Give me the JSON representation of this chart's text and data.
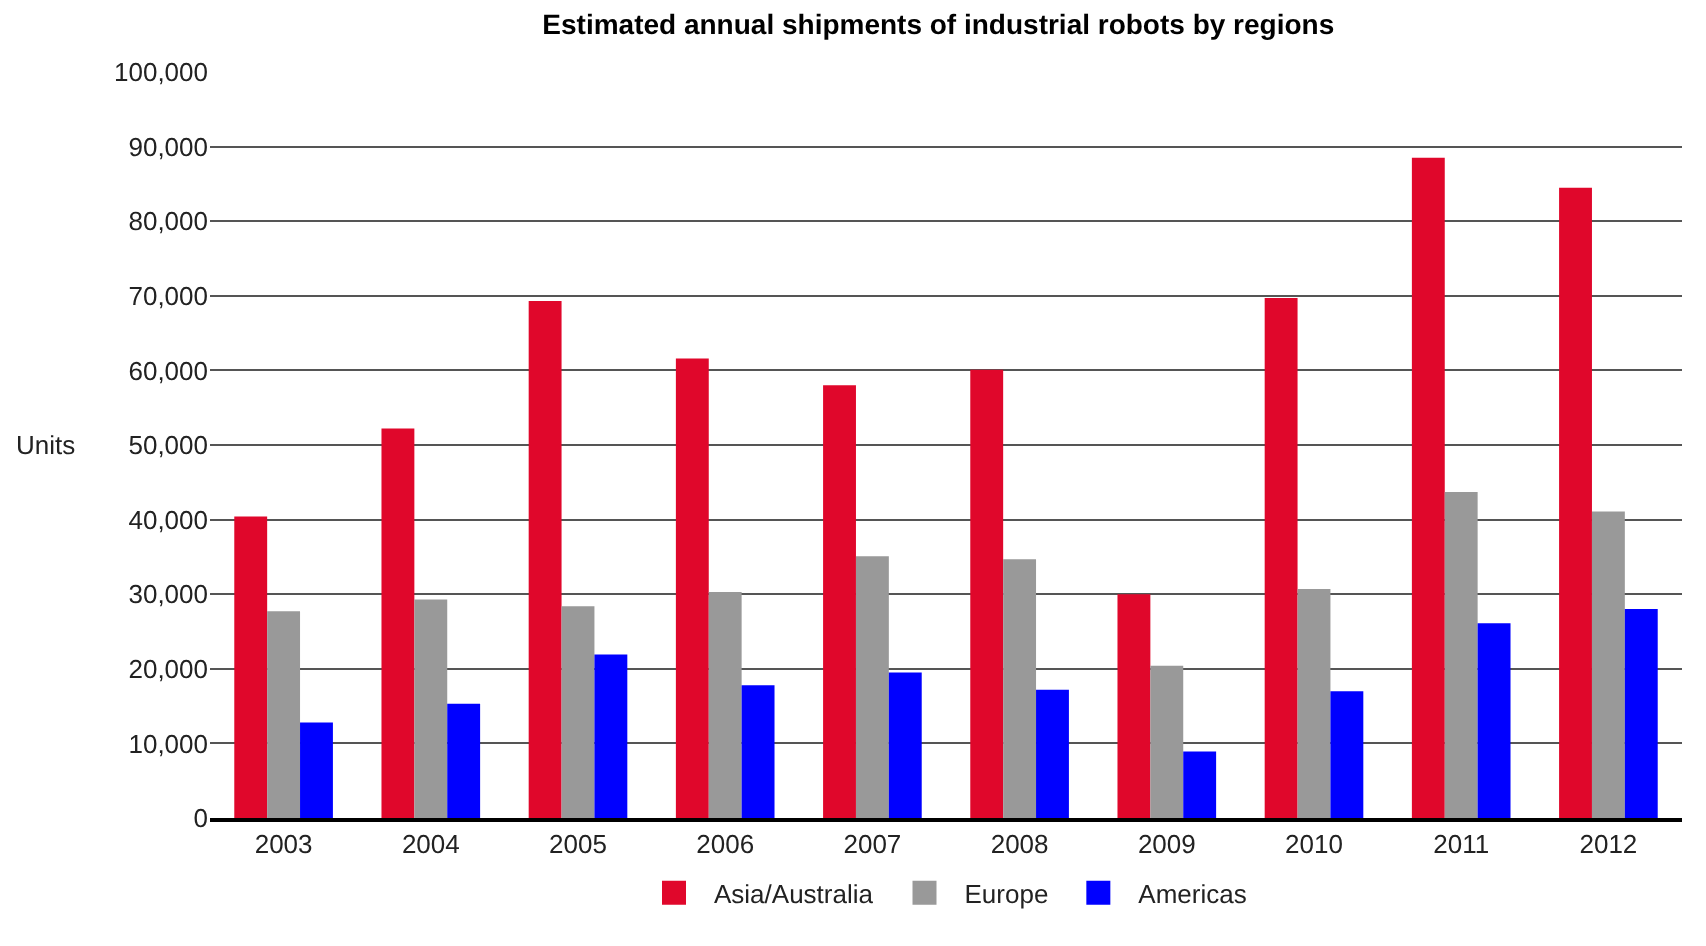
{
  "chart_data": {
    "type": "bar",
    "title": "Estimated annual shipments of industrial robots by regions",
    "ylabel": "Units",
    "categories": [
      "2003",
      "2004",
      "2005",
      "2006",
      "2007",
      "2008",
      "2009",
      "2010",
      "2011",
      "2012"
    ],
    "series": [
      {
        "name": "Asia/Australia",
        "color": "#e0072b",
        "values": [
          40400,
          52200,
          69300,
          61600,
          58000,
          60100,
          30000,
          69700,
          88500,
          84500
        ]
      },
      {
        "name": "Europe",
        "color": "#999999",
        "values": [
          27700,
          29300,
          28400,
          30300,
          35100,
          34700,
          20400,
          30700,
          43700,
          41100
        ]
      },
      {
        "name": "Americas",
        "color": "#0000ff",
        "values": [
          12800,
          15300,
          21900,
          17800,
          19500,
          17200,
          8900,
          17000,
          26100,
          28000
        ]
      }
    ],
    "ylim": [
      0,
      100000
    ],
    "yticks": [
      0,
      {
        "value": 10000,
        "label": "10,000"
      },
      {
        "value": 20000,
        "label": "20,000"
      },
      {
        "value": 30000,
        "label": "30,000"
      },
      {
        "value": 40000,
        "label": "40,000"
      },
      {
        "value": 50000,
        "label": "50,000"
      },
      {
        "value": 60000,
        "label": "60,000"
      },
      {
        "value": 70000,
        "label": "70,000"
      },
      {
        "value": 80000,
        "label": "80,000"
      },
      {
        "value": 90000,
        "label": "90,000"
      },
      {
        "value": 100000,
        "label": "100,000"
      }
    ],
    "grid": "y",
    "legend": "bottom"
  }
}
